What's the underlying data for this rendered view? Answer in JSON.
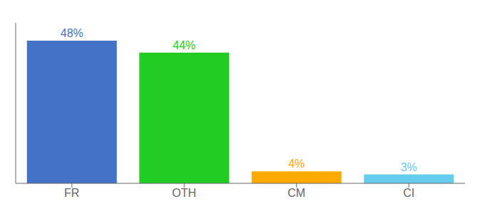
{
  "chart_data": {
    "type": "bar",
    "categories": [
      "FR",
      "OTH",
      "CM",
      "CI"
    ],
    "values": [
      48,
      44,
      4,
      3
    ],
    "value_labels": [
      "48%",
      "44%",
      "4%",
      "3%"
    ],
    "colors": [
      "#4472c4",
      "#22cc22",
      "#ffaa00",
      "#66ccee"
    ],
    "ylim": [
      0,
      54
    ],
    "data_labels": true,
    "tick_labels": "x",
    "grid": false
  }
}
